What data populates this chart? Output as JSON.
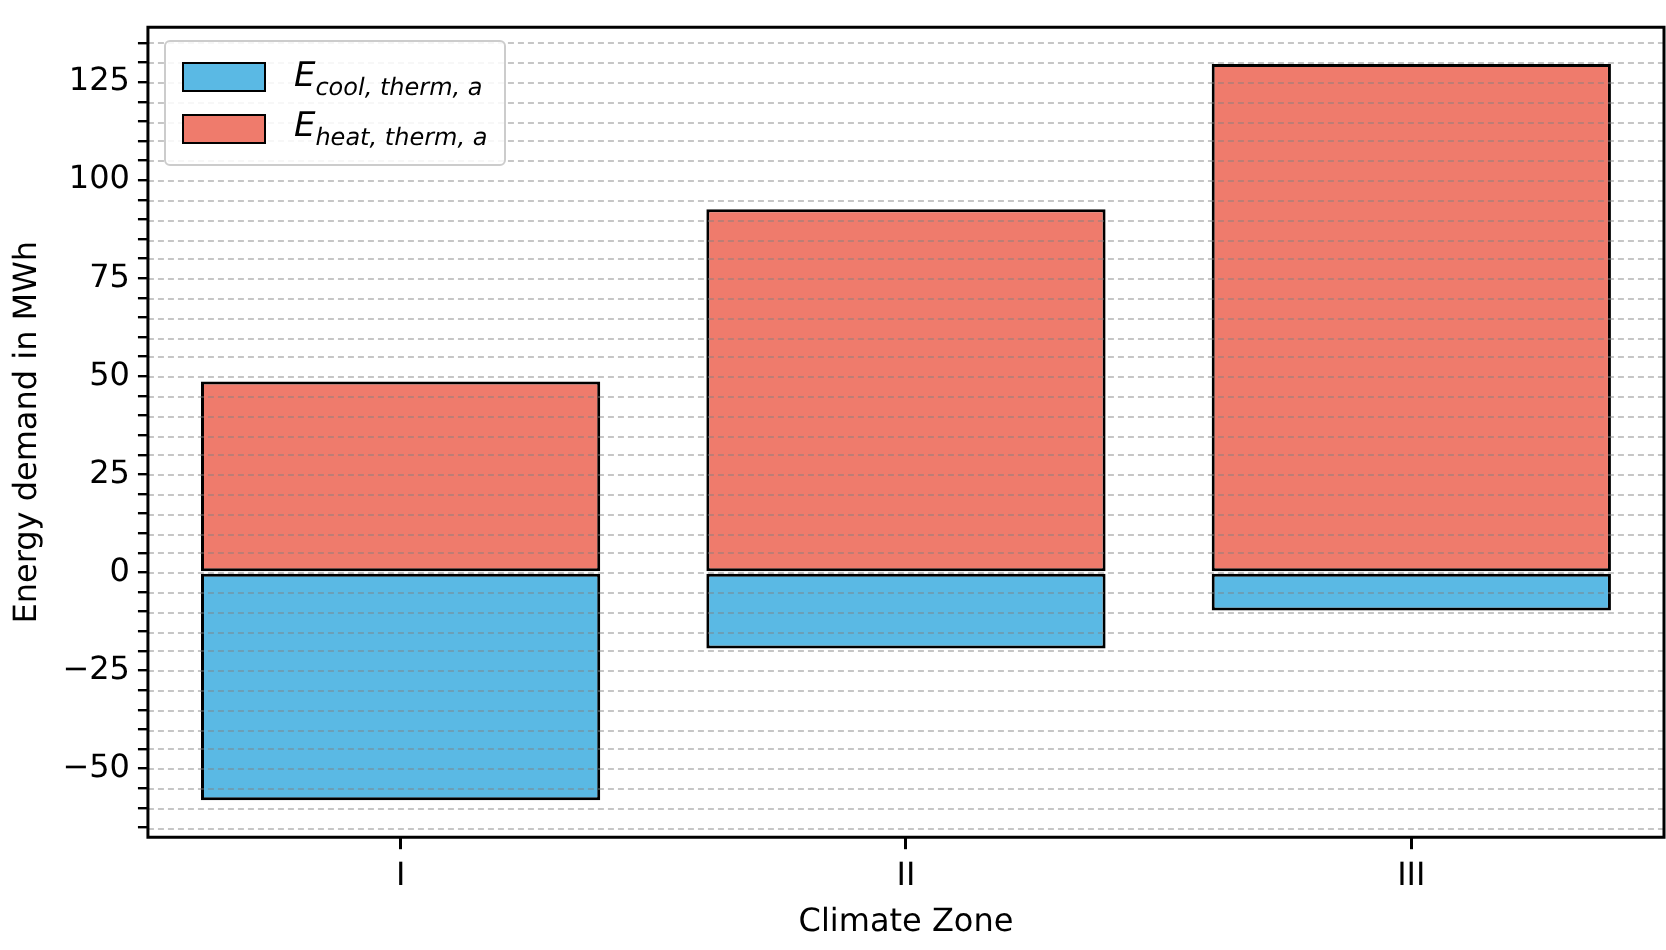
{
  "chart_data": {
    "type": "bar",
    "stacked": true,
    "xlabel": "Climate Zone",
    "ylabel": "Energy demand in MWh",
    "categories": [
      "I",
      "II",
      "III"
    ],
    "series": [
      {
        "name": "E$_{cool, therm, a}$",
        "color": "#5ab9e4",
        "values": [
          -58.1,
          -19.4,
          -9.7
        ]
      },
      {
        "name": "E$_{heat, therm, a}$",
        "color": "#ef7b6c",
        "values": [
          48.7,
          92.6,
          129.6
        ]
      }
    ],
    "ylim": [
      -67.5,
      139
    ],
    "yticks": [
      {
        "value": -65,
        "label": null
      },
      {
        "value": -60,
        "label": null
      },
      {
        "value": -55,
        "label": null
      },
      -50,
      {
        "value": -45,
        "label": null
      },
      {
        "value": -40,
        "label": null
      },
      {
        "value": -35,
        "label": null
      },
      {
        "value": -30,
        "label": null
      },
      -25,
      {
        "value": -20,
        "label": null
      },
      {
        "value": -15,
        "label": null
      },
      {
        "value": -10,
        "label": null
      },
      {
        "value": -5,
        "label": null
      },
      0,
      {
        "value": 5,
        "label": null
      },
      {
        "value": 10,
        "label": null
      },
      {
        "value": 15,
        "label": null
      },
      {
        "value": 20,
        "label": null
      },
      25,
      {
        "value": 30,
        "label": null
      },
      {
        "value": 35,
        "label": null
      },
      {
        "value": 40,
        "label": null
      },
      {
        "value": 45,
        "label": null
      },
      50,
      {
        "value": 55,
        "label": null
      },
      {
        "value": 60,
        "label": null
      },
      {
        "value": 65,
        "label": null
      },
      {
        "value": 70,
        "label": null
      },
      75,
      {
        "value": 80,
        "label": null
      },
      {
        "value": 85,
        "label": null
      },
      {
        "value": 90,
        "label": null
      },
      {
        "value": 95,
        "label": null
      },
      100,
      {
        "value": 105,
        "label": null
      },
      {
        "value": 110,
        "label": null
      },
      {
        "value": 115,
        "label": null
      },
      {
        "value": 120,
        "label": null
      },
      125,
      {
        "value": 130,
        "label": null
      },
      {
        "value": 135,
        "label": null
      }
    ],
    "grid": "y",
    "legend": "top left",
    "line_style": "dashed"
  }
}
